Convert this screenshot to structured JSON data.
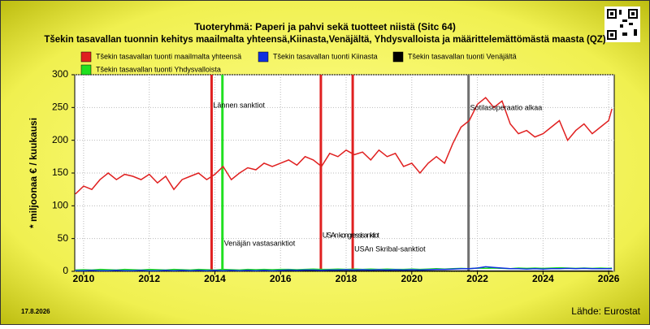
{
  "chart_data": {
    "type": "line",
    "title": "Tuoteryhmä: Paperi ja pahvi sekä tuotteet niistä (Sitc 64)",
    "subtitle": "Tšekin tasavallan tuonnin kehitys maailmalta yhteensä,Kiinasta,Venäjältä, Yhdysvalloista ja määrittelemättömästä maasta (QZ)",
    "y_label": "* miljoonaa € / kuukausi",
    "date": "17.8.2026",
    "source": "Lähde: Eurostat",
    "xlim": [
      2009.73,
      2026.17
    ],
    "ylim": [
      0,
      300
    ],
    "xticks": [
      2010,
      2012,
      2014,
      2016,
      2018,
      2020,
      2022,
      2024,
      2026
    ],
    "yticks": [
      0,
      50,
      100,
      150,
      200,
      250,
      300
    ],
    "grid": true,
    "x": [
      2009.75,
      2010,
      2010.25,
      2010.5,
      2010.75,
      2011,
      2011.25,
      2011.5,
      2011.75,
      2012,
      2012.25,
      2012.5,
      2012.75,
      2013,
      2013.25,
      2013.5,
      2013.75,
      2014,
      2014.25,
      2014.5,
      2014.75,
      2015,
      2015.25,
      2015.5,
      2015.75,
      2016,
      2016.25,
      2016.5,
      2016.75,
      2017,
      2017.25,
      2017.5,
      2017.75,
      2018,
      2018.25,
      2018.5,
      2018.75,
      2019,
      2019.25,
      2019.5,
      2019.75,
      2020,
      2020.25,
      2020.5,
      2020.75,
      2021,
      2021.25,
      2021.5,
      2021.75,
      2022,
      2022.25,
      2022.5,
      2022.75,
      2023,
      2023.25,
      2023.5,
      2023.75,
      2024,
      2024.25,
      2024.5,
      2024.75,
      2025,
      2025.25,
      2025.5,
      2025.75,
      2026,
      2026.1
    ],
    "series": [
      {
        "name": "Tšekin tasavallan tuonti maailmalta yhteensä",
        "color": "#e02020",
        "values": [
          118,
          130,
          125,
          140,
          150,
          140,
          148,
          145,
          140,
          148,
          135,
          145,
          125,
          140,
          145,
          150,
          140,
          148,
          160,
          140,
          150,
          158,
          155,
          165,
          160,
          165,
          170,
          162,
          175,
          170,
          160,
          180,
          175,
          185,
          178,
          182,
          170,
          185,
          175,
          180,
          160,
          165,
          150,
          165,
          175,
          165,
          195,
          220,
          230,
          255,
          265,
          250,
          260,
          225,
          210,
          215,
          205,
          210,
          220,
          230,
          200,
          215,
          225,
          210,
          220,
          230,
          248
        ]
      },
      {
        "name": "Tšekin tasavallan tuonti Kiinasta",
        "color": "#1030e0",
        "values": [
          1,
          1,
          1.5,
          1,
          1,
          1.5,
          1,
          1,
          1.5,
          1,
          1,
          1.5,
          1,
          1.5,
          1,
          1.5,
          1,
          1.5,
          1,
          1.5,
          1,
          1.5,
          1,
          1.5,
          1,
          1.5,
          2,
          1.5,
          2,
          2,
          1.5,
          2,
          2,
          2.5,
          2,
          2.5,
          2,
          2.5,
          2,
          2.5,
          2,
          2.5,
          2,
          2.5,
          3,
          3,
          3.5,
          4,
          4,
          5,
          7,
          6,
          5,
          4,
          4,
          3.5,
          4,
          3.5,
          4,
          4,
          4.5,
          4,
          4.5,
          4,
          4,
          4,
          4
        ]
      },
      {
        "name": "Tšekin tasavallan tuonti Venäjältä",
        "color": "#000000",
        "values": [
          0.5,
          0.5,
          0.5,
          0.5,
          0.5,
          0.5,
          0.5,
          0.5,
          0.5,
          0.5,
          0.5,
          0.5,
          0.5,
          0.5,
          0.5,
          0.5,
          0.5,
          0.5,
          0.5,
          0.5,
          0.5,
          0.5,
          0.5,
          0.5,
          0.5,
          0.5,
          0.5,
          0.5,
          0.5,
          0.5,
          0.5,
          0.5,
          0.5,
          0.5,
          0.5,
          0.5,
          0.5,
          0.5,
          0.5,
          0.5,
          0.5,
          0.5,
          0.5,
          0.5,
          0.5,
          0.5,
          0.5,
          0.5,
          0.5,
          0.5,
          0.3,
          0.2,
          0.2,
          0.2,
          0.2,
          0.2,
          0.2,
          0.2,
          0.2,
          0.2,
          0.2,
          0.2,
          0.2,
          0.2,
          0.2,
          0.2,
          0.2
        ]
      },
      {
        "name": "Tšekin tasavallan tuonti Yhdysvalloista",
        "color": "#20e020",
        "values": [
          2,
          2.5,
          2,
          3,
          2.5,
          2,
          3,
          2.5,
          2,
          3,
          2.5,
          2,
          3,
          2.5,
          2,
          3,
          2.5,
          2,
          3,
          2.5,
          2,
          3,
          2.5,
          3,
          2.5,
          3,
          3,
          2.5,
          3,
          3.5,
          3,
          3,
          3.5,
          3,
          3.5,
          3,
          3.5,
          3,
          3.5,
          3,
          3,
          3.5,
          3,
          3.5,
          4,
          3.5,
          4,
          4.5,
          4,
          5,
          4.5,
          5,
          4.5,
          4,
          5,
          4.5,
          5,
          4.5,
          5,
          5.5,
          5,
          4.5,
          5,
          4.5,
          5,
          4.5,
          5
        ]
      }
    ],
    "events": [
      {
        "x": 2013.9,
        "color": "#e02020",
        "label": "Lännen sanktiot"
      },
      {
        "x": 2014.23,
        "color": "#20e020",
        "label": "Venäjän vastasanktiot"
      },
      {
        "x": 2017.23,
        "color": "#e02020",
        "label": "USAn kongressisanktiot"
      },
      {
        "x": 2018.2,
        "color": "#e02020",
        "label": "USAn Skribal-sanktiot"
      },
      {
        "x": 2021.73,
        "color": "#707070",
        "label": "Sotilasoperaatio alkaa"
      }
    ]
  }
}
